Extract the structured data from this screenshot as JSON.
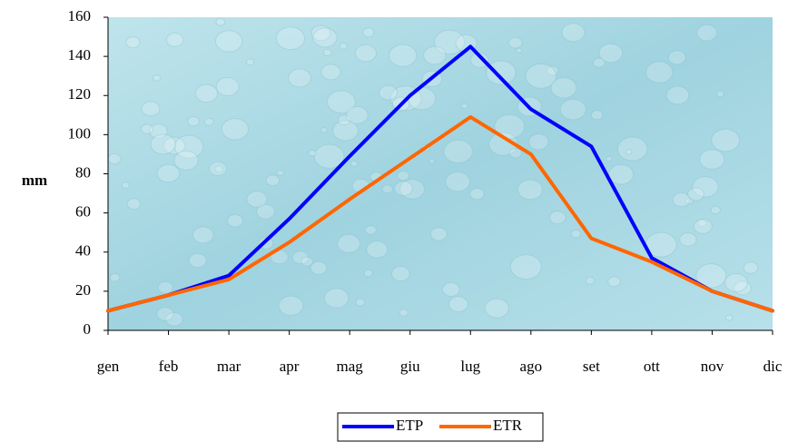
{
  "chart_data": {
    "type": "line",
    "y_label": "mm",
    "categories": [
      "gen",
      "feb",
      "mar",
      "apr",
      "mag",
      "giu",
      "lug",
      "ago",
      "set",
      "ott",
      "nov",
      "dic"
    ],
    "series": [
      {
        "name": "ETP",
        "color": "#0000ff",
        "values": [
          10,
          18,
          28,
          57,
          89,
          120,
          145,
          113,
          94,
          37,
          20,
          10
        ]
      },
      {
        "name": "ETR",
        "color": "#ff6600",
        "values": [
          10,
          18,
          26,
          45,
          67,
          88,
          109,
          90,
          47,
          35,
          20,
          10
        ]
      }
    ],
    "ylim": [
      0,
      160
    ],
    "yticks": [
      0,
      20,
      40,
      60,
      80,
      100,
      120,
      140,
      160
    ],
    "legend": "bottom"
  }
}
